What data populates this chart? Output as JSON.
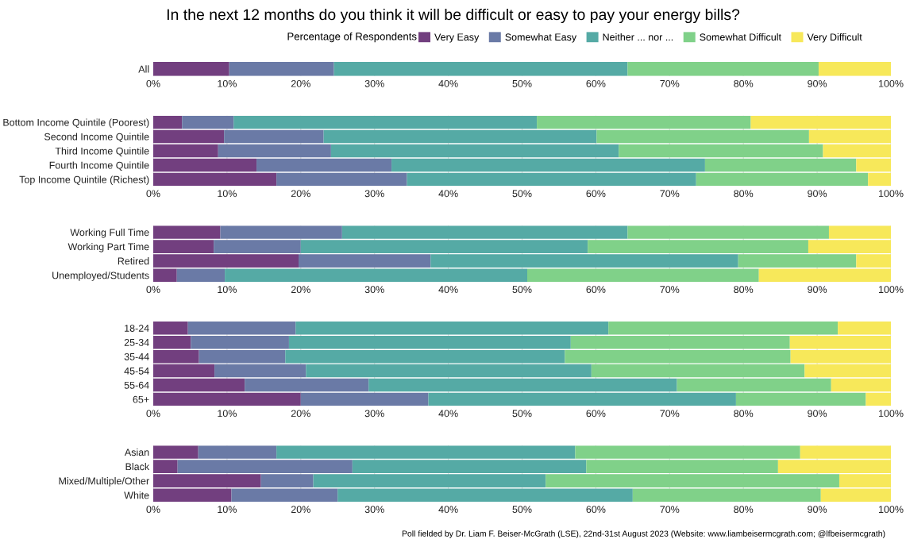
{
  "chart_data": [
    {
      "type": "bar",
      "orientation": "horizontal",
      "stacked": true,
      "title": "In the next 12 months do you think it will be difficult or easy to pay your energy bills?",
      "legend_title": "Percentage of Respondents",
      "legend": "top",
      "grid": "x",
      "xlim": [
        0,
        100
      ],
      "xticks": [
        {
          "value": 0,
          "label": "0%"
        },
        {
          "value": 10,
          "label": "10%"
        },
        {
          "value": 20,
          "label": "20%"
        },
        {
          "value": 30,
          "label": "30%"
        },
        {
          "value": 40,
          "label": "40%"
        },
        {
          "value": 50,
          "label": "50%"
        },
        {
          "value": 60,
          "label": "60%"
        },
        {
          "value": 70,
          "label": "70%"
        },
        {
          "value": 80,
          "label": "80%"
        },
        {
          "value": 90,
          "label": "90%"
        },
        {
          "value": 100,
          "label": "100%"
        }
      ],
      "categories": [
        "All"
      ],
      "series": [
        {
          "name": "Very Easy",
          "color": "#723f7f",
          "values": [
            10.3
          ]
        },
        {
          "name": "Somewhat Easy",
          "color": "#6a7aa6",
          "values": [
            14.2
          ]
        },
        {
          "name": "Neither ... nor ...",
          "color": "#55aaa5",
          "values": [
            39.8
          ]
        },
        {
          "name": "Somewhat Difficult",
          "color": "#80d189",
          "values": [
            25.9
          ]
        },
        {
          "name": "Very Difficult",
          "color": "#f7e85a",
          "values": [
            9.8
          ]
        }
      ]
    },
    {
      "type": "bar",
      "orientation": "horizontal",
      "stacked": true,
      "grid": "x",
      "xlim": [
        0,
        100
      ],
      "xticks": [
        {
          "value": 0,
          "label": "0%"
        },
        {
          "value": 10,
          "label": "10%"
        },
        {
          "value": 20,
          "label": "20%"
        },
        {
          "value": 30,
          "label": "30%"
        },
        {
          "value": 40,
          "label": "40%"
        },
        {
          "value": 50,
          "label": "50%"
        },
        {
          "value": 60,
          "label": "60%"
        },
        {
          "value": 70,
          "label": "70%"
        },
        {
          "value": 80,
          "label": "80%"
        },
        {
          "value": 90,
          "label": "90%"
        },
        {
          "value": 100,
          "label": "100%"
        }
      ],
      "categories": [
        "Bottom Income Quintile (Poorest)",
        "Second Income Quintile",
        "Third Income Quintile",
        "Fourth Income Quintile",
        "Top Income Quintile (Richest)"
      ],
      "series": [
        {
          "color": "#723f7f",
          "values": [
            3.9,
            9.6,
            8.8,
            14.0,
            16.7
          ]
        },
        {
          "color": "#6a7aa6",
          "values": [
            7.0,
            13.5,
            15.3,
            18.3,
            17.7
          ]
        },
        {
          "color": "#55aaa5",
          "values": [
            41.1,
            37.0,
            39.0,
            42.5,
            39.2
          ]
        },
        {
          "color": "#80d189",
          "values": [
            29.0,
            28.8,
            27.7,
            20.5,
            23.3
          ]
        },
        {
          "color": "#f7e85a",
          "values": [
            19.0,
            11.1,
            9.2,
            4.7,
            3.1
          ]
        }
      ]
    },
    {
      "type": "bar",
      "orientation": "horizontal",
      "stacked": true,
      "grid": "x",
      "xlim": [
        0,
        100
      ],
      "xticks": [
        {
          "value": 0,
          "label": "0%"
        },
        {
          "value": 10,
          "label": "10%"
        },
        {
          "value": 20,
          "label": "20%"
        },
        {
          "value": 30,
          "label": "30%"
        },
        {
          "value": 40,
          "label": "40%"
        },
        {
          "value": 50,
          "label": "50%"
        },
        {
          "value": 60,
          "label": "60%"
        },
        {
          "value": 70,
          "label": "70%"
        },
        {
          "value": 80,
          "label": "80%"
        },
        {
          "value": 90,
          "label": "90%"
        },
        {
          "value": 100,
          "label": "100%"
        }
      ],
      "categories": [
        "Working Full Time",
        "Working Part Time",
        "Retired",
        "Unemployed/Students"
      ],
      "series": [
        {
          "color": "#723f7f",
          "values": [
            9.1,
            8.2,
            19.7,
            3.2
          ]
        },
        {
          "color": "#6a7aa6",
          "values": [
            16.5,
            11.8,
            17.9,
            6.5
          ]
        },
        {
          "color": "#55aaa5",
          "values": [
            38.7,
            38.9,
            41.7,
            41.0
          ]
        },
        {
          "color": "#80d189",
          "values": [
            27.3,
            29.9,
            16.0,
            31.4
          ]
        },
        {
          "color": "#f7e85a",
          "values": [
            8.4,
            11.2,
            4.7,
            17.9
          ]
        }
      ]
    },
    {
      "type": "bar",
      "orientation": "horizontal",
      "stacked": true,
      "grid": "x",
      "xlim": [
        0,
        100
      ],
      "xticks": [
        {
          "value": 0,
          "label": "0%"
        },
        {
          "value": 10,
          "label": "10%"
        },
        {
          "value": 20,
          "label": "20%"
        },
        {
          "value": 30,
          "label": "30%"
        },
        {
          "value": 40,
          "label": "40%"
        },
        {
          "value": 50,
          "label": "50%"
        },
        {
          "value": 60,
          "label": "60%"
        },
        {
          "value": 70,
          "label": "70%"
        },
        {
          "value": 80,
          "label": "80%"
        },
        {
          "value": 90,
          "label": "90%"
        },
        {
          "value": 100,
          "label": "100%"
        }
      ],
      "categories": [
        "18-24",
        "25-34",
        "35-44",
        "45-54",
        "55-64",
        "65+"
      ],
      "series": [
        {
          "color": "#723f7f",
          "values": [
            4.7,
            5.1,
            6.2,
            8.3,
            12.4,
            20.0
          ]
        },
        {
          "color": "#6a7aa6",
          "values": [
            14.6,
            13.3,
            11.7,
            12.4,
            16.8,
            17.3
          ]
        },
        {
          "color": "#55aaa5",
          "values": [
            42.4,
            38.2,
            37.9,
            38.7,
            41.8,
            41.7
          ]
        },
        {
          "color": "#80d189",
          "values": [
            31.1,
            29.7,
            30.6,
            28.9,
            20.9,
            17.6
          ]
        },
        {
          "color": "#f7e85a",
          "values": [
            7.2,
            13.7,
            13.6,
            11.7,
            8.1,
            3.4
          ]
        }
      ]
    },
    {
      "type": "bar",
      "orientation": "horizontal",
      "stacked": true,
      "grid": "x",
      "xlim": [
        0,
        100
      ],
      "xticks": [
        {
          "value": 0,
          "label": "0%"
        },
        {
          "value": 10,
          "label": "10%"
        },
        {
          "value": 20,
          "label": "20%"
        },
        {
          "value": 30,
          "label": "30%"
        },
        {
          "value": 40,
          "label": "40%"
        },
        {
          "value": 50,
          "label": "50%"
        },
        {
          "value": 60,
          "label": "60%"
        },
        {
          "value": 70,
          "label": "70%"
        },
        {
          "value": 80,
          "label": "80%"
        },
        {
          "value": 90,
          "label": "90%"
        },
        {
          "value": 100,
          "label": "100%"
        }
      ],
      "categories": [
        "Asian",
        "Black",
        "Mixed/Multiple/Other",
        "White"
      ],
      "annotations": [
        "Poll fielded by Dr. Liam F. Beiser-McGrath (LSE), 22nd-31st August 2023 (Website: www.liambeisermcgrath.com; @lfbeisermcgrath)"
      ],
      "series": [
        {
          "color": "#723f7f",
          "values": [
            6.1,
            3.3,
            14.6,
            10.6
          ]
        },
        {
          "color": "#6a7aa6",
          "values": [
            10.6,
            23.7,
            7.1,
            14.4
          ]
        },
        {
          "color": "#55aaa5",
          "values": [
            40.5,
            31.7,
            31.5,
            40.0
          ]
        },
        {
          "color": "#80d189",
          "values": [
            30.5,
            26.0,
            39.8,
            25.5
          ]
        },
        {
          "color": "#f7e85a",
          "values": [
            12.3,
            15.3,
            7.0,
            9.5
          ]
        }
      ]
    }
  ]
}
